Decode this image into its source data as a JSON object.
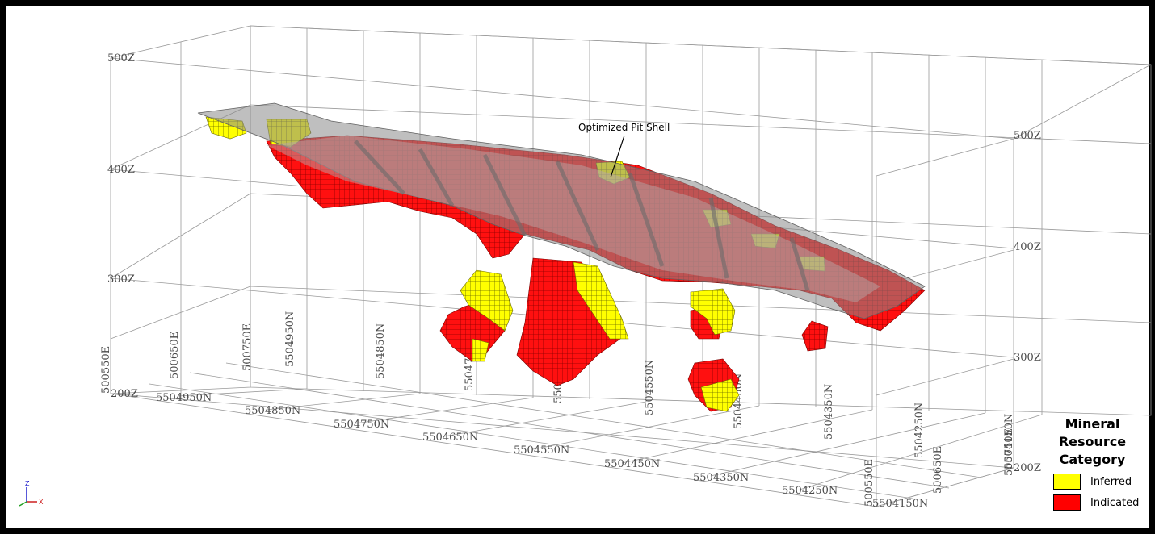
{
  "annotation": "Optimized Pit Shell",
  "legend": {
    "title_lines": [
      "Mineral",
      "Resource",
      "Category"
    ],
    "items": [
      {
        "label": "Inferred",
        "color": "#ffff00"
      },
      {
        "label": "Indicated",
        "color": "#ff0000"
      }
    ]
  },
  "axis_labels": {
    "elevation_left": [
      "500Z",
      "400Z",
      "300Z",
      "200Z"
    ],
    "elevation_right": [
      "500Z",
      "400Z",
      "300Z",
      "200Z"
    ],
    "northing_bottom": [
      "5504950N",
      "5504850N",
      "5504750N",
      "5504650N",
      "5504550N",
      "5504450N",
      "5504350N",
      "5504250N",
      "5504150N"
    ],
    "northing_vertical": [
      "5504950N",
      "5504850N",
      "5504750N",
      "5504650N",
      "5504550N",
      "5504450N",
      "5504350N",
      "5504250N",
      "5504150N"
    ],
    "easting_left": [
      "500550E",
      "500650E",
      "500750E"
    ],
    "easting_right": [
      "500550E",
      "500650E",
      "500750E"
    ]
  },
  "triad": {
    "z": "Z",
    "x": "X"
  },
  "colors": {
    "indicated": "#ff0000",
    "inferred": "#ffff00",
    "pit_shell": "#808080"
  }
}
